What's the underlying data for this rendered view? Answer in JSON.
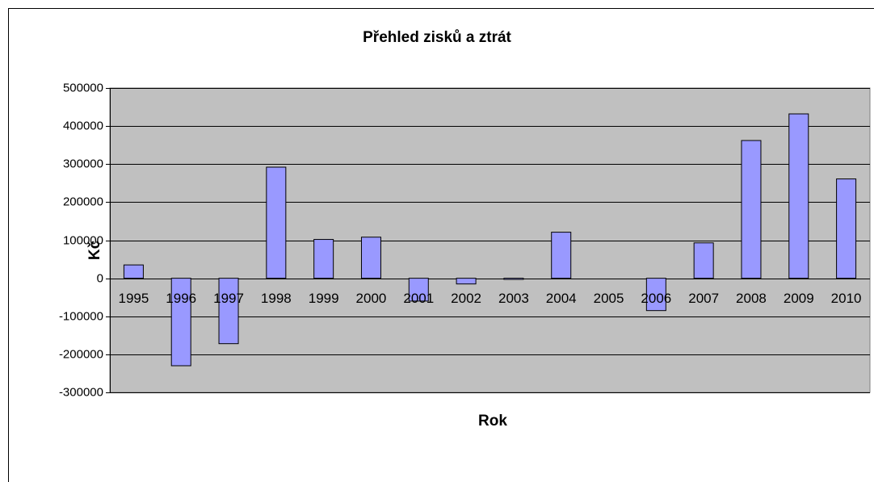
{
  "chart_data": {
    "type": "bar",
    "title": "Přehled zisků a ztrát",
    "x_label": "Rok",
    "y_label": "Kč",
    "categories": [
      "1995",
      "1996",
      "1997",
      "1998",
      "1999",
      "2000",
      "2001",
      "2002",
      "2003",
      "2004",
      "2005",
      "2006",
      "2007",
      "2008",
      "2009",
      "2010"
    ],
    "values": [
      35000,
      -230000,
      -172000,
      292000,
      102000,
      108000,
      -60000,
      -15000,
      -3000,
      121000,
      0,
      -85000,
      93000,
      362000,
      432000,
      261000
    ],
    "color": "#9999ff",
    "ylim": [
      -300000,
      500000
    ],
    "yticks": [
      -300000,
      -200000,
      -100000,
      0,
      100000,
      200000,
      300000,
      400000,
      500000
    ],
    "grid": true
  }
}
